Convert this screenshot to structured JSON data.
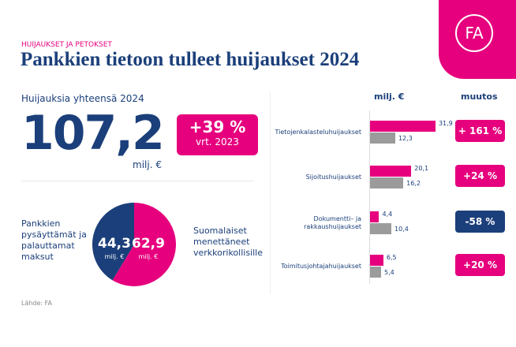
{
  "logo": "FA",
  "kicker": "HUIJAUKSET JA PETOKSET",
  "title": "Pankkien tietoon tulleet huijaukset 2024",
  "summary": {
    "label": "Huijauksia yhteensä 2024",
    "total": "107,2",
    "unit": "milj. €",
    "change": "+39 %",
    "change_ref": "vrt. 2023"
  },
  "pie": {
    "left_label_lines": [
      "Pankkien",
      "pysäyttämät ja",
      "palauttamat",
      "maksut"
    ],
    "right_label_lines": [
      "Suomalaiset",
      "menettäneet",
      "verkkorikollisille"
    ]
  },
  "bars": {
    "col_value": "milj. €",
    "col_change": "muutos"
  },
  "source": "Lähde: FA",
  "chart_data": [
    {
      "type": "pie",
      "title": "Huijauksia yhteensä 2024",
      "values": [
        {
          "label": "Pankkien pysäyttämät ja palauttamat maksut",
          "value": 44.3,
          "text": "44,3",
          "unit": "milj. €",
          "color": "#1b3f7a"
        },
        {
          "label": "Suomalaiset menettäneet verkkorikollisille",
          "value": 62.9,
          "text": "62,9",
          "unit": "milj. €",
          "color": "#e6007e"
        }
      ]
    },
    {
      "type": "bar",
      "orientation": "horizontal",
      "categories": [
        "Tietojenkalasteluhuijaukset",
        "Sijoitushuijaukset",
        "Dokumentti- ja rakkaushuijaukset",
        "Toimitusjohtajahuijaukset"
      ],
      "series": [
        {
          "name": "2024",
          "color": "#e6007e",
          "values": [
            31.9,
            20.1,
            4.4,
            6.5
          ],
          "labels": [
            "31,9",
            "20,1",
            "4,4",
            "6,5"
          ]
        },
        {
          "name": "2023",
          "color": "#9b9b9b",
          "values": [
            12.3,
            16.2,
            10.4,
            5.4
          ],
          "labels": [
            "12,3",
            "16,2",
            "10,4",
            "5,4"
          ]
        }
      ],
      "changes": [
        {
          "text": "+ 161 %",
          "color": "#e6007e"
        },
        {
          "text": "+24 %",
          "color": "#e6007e"
        },
        {
          "text": "-58 %",
          "color": "#1b3f7a"
        },
        {
          "text": "+20 %",
          "color": "#e6007e"
        }
      ],
      "xlim": [
        0,
        35
      ]
    }
  ]
}
